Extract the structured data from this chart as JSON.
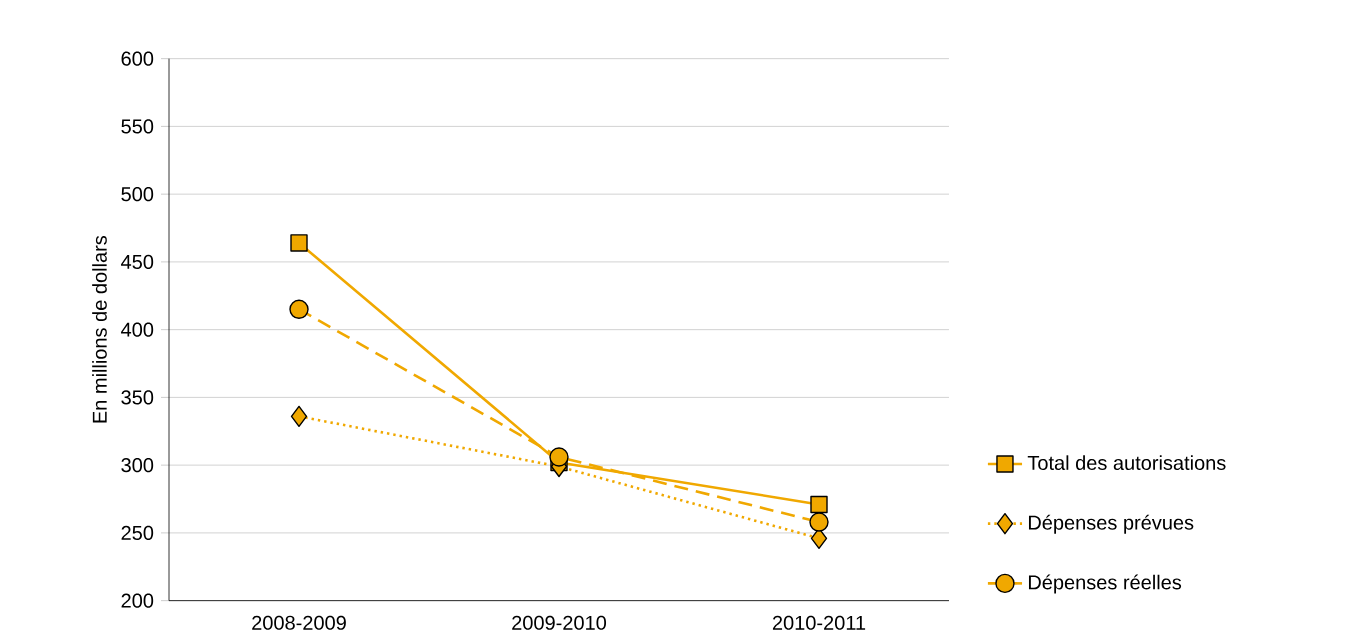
{
  "chart_data": {
    "type": "line",
    "ylabel": "En millions de dollars",
    "categories": [
      "2008-2009",
      "2009-2010",
      "2010-2011"
    ],
    "series": [
      {
        "name": "Total des autorisations",
        "color": "#f0a800",
        "values": [
          464,
          302,
          271
        ],
        "marker": "square",
        "line_style": "solid"
      },
      {
        "name": "Dépenses prévues",
        "color": "#f0a800",
        "values": [
          336,
          299,
          246
        ],
        "marker": "diamond",
        "line_style": "dotted"
      },
      {
        "name": "Dépenses réelles",
        "color": "#f0a800",
        "values": [
          415,
          306,
          258
        ],
        "marker": "circle",
        "line_style": "dashed"
      }
    ],
    "ylim": [
      200,
      600
    ],
    "yticks": [
      200,
      250,
      300,
      350,
      400,
      450,
      500,
      550,
      600
    ],
    "grid": "y",
    "legend": "bottom right"
  }
}
